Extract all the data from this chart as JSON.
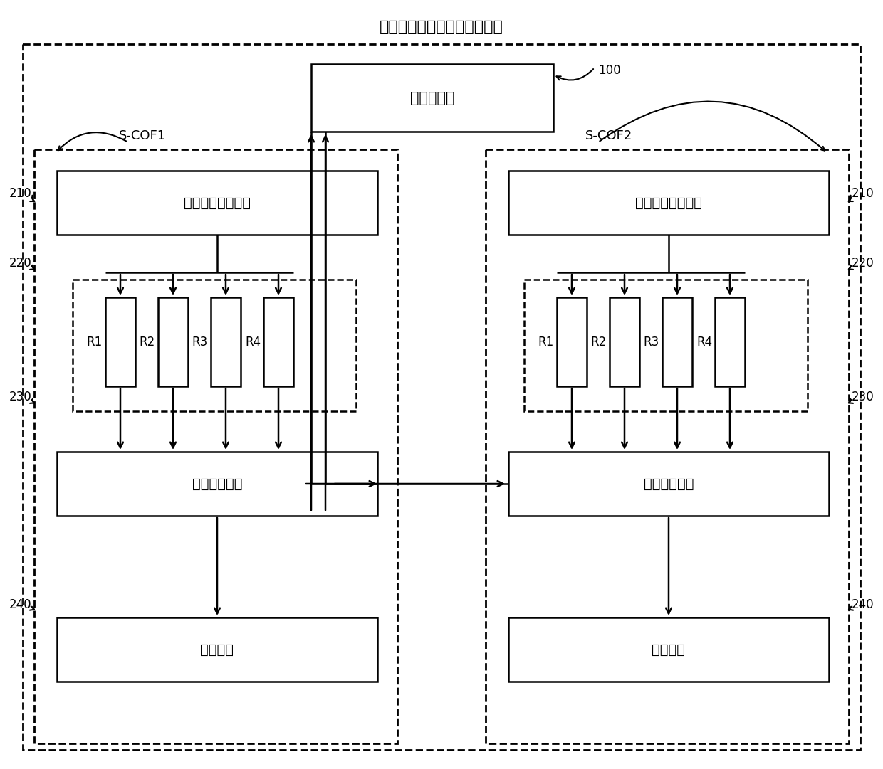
{
  "title": "显示面板的伽马电压校正电路",
  "bg_color": "#ffffff",
  "line_color": "#000000",
  "timing_ctrl_label": "时序控制器",
  "timing_ctrl_id": "100",
  "scof1_label": "S-COF1",
  "scof2_label": "S-COF2",
  "voltage_gen_label": "第一电压产生模块",
  "mux_label": "多路选择模块",
  "output_label": "输出模块",
  "resistors": [
    "R1",
    "R2",
    "R3",
    "R4"
  ],
  "fig_width": 12.4,
  "fig_height": 10.81
}
